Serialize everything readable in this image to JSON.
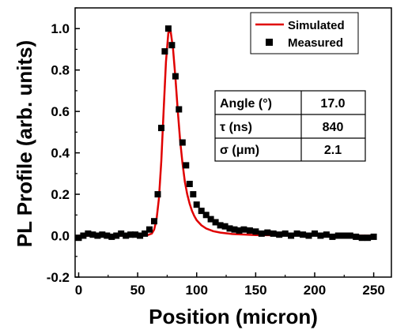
{
  "chart_data": {
    "type": "scatter",
    "xlabel": "Position (micron)",
    "ylabel": "PL Profile (arb. units)",
    "xlim": [
      -3,
      265
    ],
    "ylim": [
      -0.2,
      1.1
    ],
    "xticks": [
      0,
      50,
      100,
      150,
      200,
      250
    ],
    "yticks": [
      -0.2,
      0.0,
      0.2,
      0.4,
      0.6,
      0.8,
      1.0
    ],
    "ytick_labels": [
      "-0.2",
      "0.0",
      "0.2",
      "0.4",
      "0.6",
      "0.8",
      "1.0"
    ],
    "grid": false,
    "legend_position": "top-right",
    "series": [
      {
        "name": "Simulated",
        "kind": "line",
        "color": "#e00000",
        "x": [
          0,
          50,
          58,
          62,
          64,
          66,
          68,
          70,
          72,
          74,
          76,
          78,
          80,
          82,
          84,
          86,
          88,
          90,
          92,
          94,
          96,
          98,
          100,
          104,
          108,
          114,
          120,
          130,
          150,
          200,
          250
        ],
        "y": [
          0.0,
          0.0,
          0.002,
          0.01,
          0.03,
          0.08,
          0.18,
          0.36,
          0.6,
          0.84,
          0.98,
          0.985,
          0.9,
          0.76,
          0.6,
          0.46,
          0.35,
          0.26,
          0.2,
          0.155,
          0.12,
          0.095,
          0.075,
          0.05,
          0.035,
          0.022,
          0.015,
          0.008,
          0.003,
          0.001,
          0.0
        ]
      },
      {
        "name": "Measured",
        "kind": "scatter",
        "color": "#000000",
        "x": [
          0,
          4,
          8,
          12,
          16,
          20,
          24,
          28,
          32,
          36,
          40,
          44,
          48,
          52,
          56,
          60,
          64,
          67,
          70,
          73,
          76,
          79,
          82,
          85,
          88,
          91,
          94,
          97,
          100,
          104,
          108,
          112,
          116,
          120,
          124,
          128,
          132,
          136,
          140,
          145,
          150,
          155,
          160,
          165,
          170,
          175,
          180,
          185,
          190,
          195,
          200,
          205,
          210,
          215,
          220,
          225,
          230,
          235,
          240,
          245,
          250
        ],
        "y": [
          -0.01,
          0.0,
          0.01,
          0.005,
          0.0,
          0.005,
          0.0,
          -0.005,
          0.0,
          0.01,
          0.0,
          0.005,
          0.005,
          0.0,
          0.01,
          0.03,
          0.07,
          0.2,
          0.52,
          0.89,
          1.0,
          0.92,
          0.77,
          0.61,
          0.45,
          0.34,
          0.25,
          0.2,
          0.15,
          0.12,
          0.1,
          0.08,
          0.065,
          0.05,
          0.045,
          0.035,
          0.03,
          0.025,
          0.03,
          0.025,
          0.02,
          0.01,
          0.015,
          0.01,
          0.005,
          0.01,
          0.0,
          0.01,
          0.005,
          0.0,
          0.01,
          0.0,
          0.005,
          -0.005,
          0.0,
          0.0,
          0.0,
          -0.005,
          -0.01,
          -0.01,
          -0.005
        ]
      }
    ],
    "annotation_table": {
      "rows": [
        {
          "label": "Angle (°)",
          "value": "17.0"
        },
        {
          "label": "τ (ns)",
          "value": "840"
        },
        {
          "label": "σ (μm)",
          "value": "2.1"
        }
      ]
    }
  }
}
